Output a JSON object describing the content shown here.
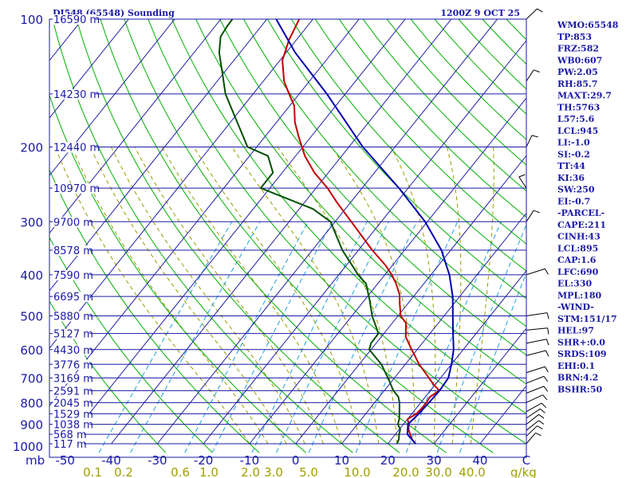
{
  "chart_data": {
    "type": "line",
    "chart_kind": "skew-T log-P sounding",
    "title": "DI548 (65548) Sounding",
    "datetime": "1200Z  9 OCT 25",
    "pressure_unit_label": "mb",
    "mixing_ratio_unit_label": "g/kg",
    "pressure_ticks": [
      100,
      200,
      300,
      400,
      500,
      600,
      700,
      800,
      900,
      1000
    ],
    "temperature_ticks": [
      -50,
      -40,
      -30,
      -20,
      -10,
      0,
      10,
      20,
      30,
      40,
      "C"
    ],
    "mixing_ratio_ticks": [
      "0.1",
      "0.2",
      "0.6",
      "1.0",
      "2.0",
      "3.0",
      "5.0",
      "10.0",
      "20.0",
      "30.0",
      "40.0"
    ],
    "height_levels": [
      {
        "p": 100,
        "h": "16590 m"
      },
      {
        "p": 150,
        "h": "14230 m"
      },
      {
        "p": 200,
        "h": "12440 m"
      },
      {
        "p": 250,
        "h": "10970 m"
      },
      {
        "p": 300,
        "h": "9700 m"
      },
      {
        "p": 350,
        "h": "8578 m"
      },
      {
        "p": 400,
        "h": "7590 m"
      },
      {
        "p": 450,
        "h": "6695 m"
      },
      {
        "p": 500,
        "h": "5880 m"
      },
      {
        "p": 550,
        "h": "5127 m"
      },
      {
        "p": 600,
        "h": "4430 m"
      },
      {
        "p": 650,
        "h": "3776 m"
      },
      {
        "p": 700,
        "h": "3169 m"
      },
      {
        "p": 750,
        "h": "2591 m"
      },
      {
        "p": 800,
        "h": "2045 m"
      },
      {
        "p": 850,
        "h": "1529 m"
      },
      {
        "p": 900,
        "h": "1038 m"
      },
      {
        "p": 950,
        "h": "568 m"
      },
      {
        "p": 1000,
        "h": "117 m"
      }
    ],
    "series": [
      {
        "name": "Temperature",
        "color": "#c00000",
        "points": [
          [
            1000,
            26.0
          ],
          [
            975,
            24.4
          ],
          [
            950,
            23.2
          ],
          [
            925,
            22.0
          ],
          [
            900,
            21.2
          ],
          [
            875,
            20.0
          ],
          [
            850,
            21.0
          ],
          [
            825,
            21.2
          ],
          [
            800,
            21.2
          ],
          [
            775,
            21.0
          ],
          [
            750,
            22.0
          ],
          [
            725,
            19.6
          ],
          [
            700,
            17.5
          ],
          [
            650,
            13.0
          ],
          [
            600,
            8.8
          ],
          [
            560,
            5.3
          ],
          [
            520,
            3.0
          ],
          [
            500,
            0.6
          ],
          [
            470,
            -1.6
          ],
          [
            445,
            -3.4
          ],
          [
            420,
            -6.0
          ],
          [
            400,
            -8.5
          ],
          [
            380,
            -11.5
          ],
          [
            350,
            -17.0
          ],
          [
            300,
            -26.5
          ],
          [
            270,
            -33.0
          ],
          [
            250,
            -37.5
          ],
          [
            230,
            -43.0
          ],
          [
            210,
            -48.0
          ],
          [
            190,
            -52.5
          ],
          [
            175,
            -56.0
          ],
          [
            160,
            -59.0
          ],
          [
            150,
            -62.2
          ],
          [
            140,
            -65.5
          ],
          [
            125,
            -69.5
          ],
          [
            112,
            -71.6
          ],
          [
            104,
            -72.5
          ],
          [
            100,
            -73.0
          ]
        ]
      },
      {
        "name": "Dewpoint",
        "color": "#005000",
        "points": [
          [
            1000,
            22.0
          ],
          [
            975,
            21.6
          ],
          [
            950,
            20.8
          ],
          [
            925,
            20.2
          ],
          [
            900,
            18.8
          ],
          [
            875,
            18.2
          ],
          [
            850,
            17.3
          ],
          [
            800,
            15.4
          ],
          [
            775,
            14.1
          ],
          [
            750,
            12.0
          ],
          [
            700,
            8.6
          ],
          [
            650,
            4.8
          ],
          [
            600,
            -0.4
          ],
          [
            580,
            -1.1
          ],
          [
            550,
            -1.2
          ],
          [
            500,
            -5.6
          ],
          [
            460,
            -8.8
          ],
          [
            420,
            -12.5
          ],
          [
            400,
            -15.8
          ],
          [
            350,
            -23.5
          ],
          [
            300,
            -31.0
          ],
          [
            280,
            -37.0
          ],
          [
            250,
            -52.0
          ],
          [
            230,
            -52.0
          ],
          [
            210,
            -56.0
          ],
          [
            200,
            -62.0
          ],
          [
            175,
            -68.5
          ],
          [
            150,
            -76.0
          ],
          [
            135,
            -80.0
          ],
          [
            120,
            -84.5
          ],
          [
            110,
            -87.0
          ],
          [
            104,
            -87.4
          ],
          [
            100,
            -87.5
          ]
        ]
      },
      {
        "name": "Parcel",
        "color": "#0000b0",
        "points": [
          [
            1000,
            26.0
          ],
          [
            950,
            22.6
          ],
          [
            900,
            21.0
          ],
          [
            850,
            21.5
          ],
          [
            800,
            21.8
          ],
          [
            750,
            22.0
          ],
          [
            700,
            21.7
          ],
          [
            650,
            20.0
          ],
          [
            600,
            17.9
          ],
          [
            550,
            15.0
          ],
          [
            500,
            11.9
          ],
          [
            450,
            8.5
          ],
          [
            400,
            4.0
          ],
          [
            350,
            -2.0
          ],
          [
            300,
            -10.5
          ],
          [
            250,
            -22.0
          ],
          [
            200,
            -37.0
          ],
          [
            150,
            -54.0
          ],
          [
            120,
            -68.0
          ],
          [
            100,
            -78.0
          ]
        ]
      }
    ],
    "wind_barbs_present": true,
    "stats": [
      "WMO:65548",
      "TP:853",
      "FRZ:582",
      "WB0:607",
      "PW:2.05",
      "RH:85.7",
      "MAXT:29.7",
      "TH:5763",
      "L57:5.6",
      "LCL:945",
      "LI:-1.0",
      "SI:-0.2",
      "TT:44",
      "KI:36",
      "SW:250",
      "EI:-0.7",
      "-PARCEL-",
      "CAPE:211",
      "CINH:43",
      "LCL:895",
      "CAP:1.6",
      "LFC:690",
      "EL:330",
      "MPL:180",
      "-WIND-",
      "STM:151/17",
      "HEL:97",
      "SHR+:0.0",
      "SRDS:109",
      "EHI:0.1",
      "BRN:4.2",
      "BSHR:50"
    ],
    "colors": {
      "isobar": "#1a1aa6",
      "isotherm": "#1a1aa6",
      "dry_adiabat": "#00b000",
      "moist_adiabat": "#9b9b00",
      "mixing_ratio": "#20a0e0",
      "text": "#1a1aa6",
      "mixing_text": "#a0a000"
    }
  }
}
